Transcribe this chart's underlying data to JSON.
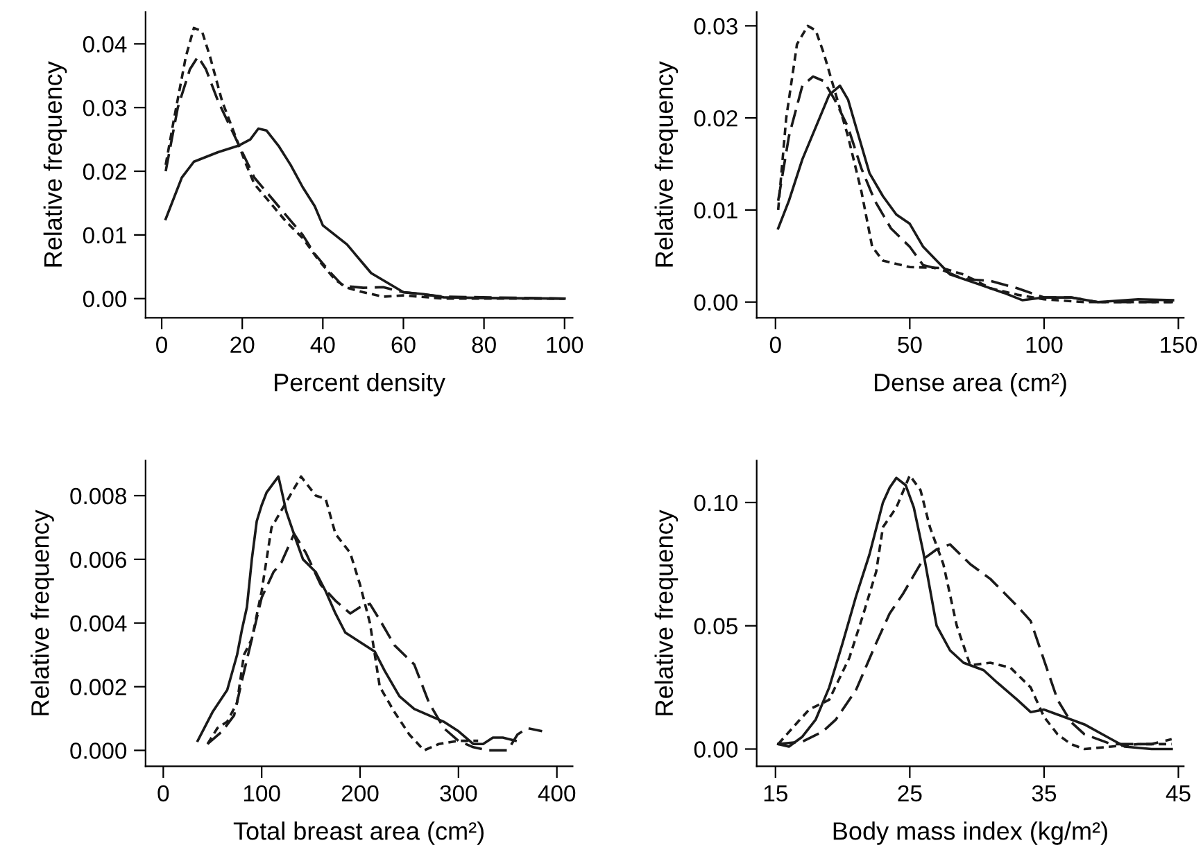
{
  "chart_data": [
    {
      "type": "line",
      "xlabel": "Percent density",
      "ylabel": "Relative frequency",
      "xlim": [
        -4,
        102
      ],
      "ylim": [
        -0.003,
        0.045
      ],
      "xticks": [
        0,
        20,
        40,
        60,
        80,
        100
      ],
      "yticks": [
        {
          "value": 0,
          "label": "0.00"
        },
        {
          "value": 0.01,
          "label": "0.01"
        },
        {
          "value": 0.02,
          "label": "0.02"
        },
        {
          "value": 0.03,
          "label": "0.03"
        },
        {
          "value": 0.04,
          "label": "0.04"
        }
      ],
      "series": [
        {
          "color": "#1a1a1a",
          "line_style": "solid",
          "x": [
            1,
            5,
            8,
            14,
            19,
            22,
            24,
            26,
            29,
            32,
            35,
            38,
            40,
            43,
            46,
            50,
            52,
            56,
            60,
            65,
            70,
            80,
            100
          ],
          "values": [
            0.0125,
            0.019,
            0.0215,
            0.023,
            0.024,
            0.025,
            0.0267,
            0.0264,
            0.024,
            0.021,
            0.0175,
            0.0145,
            0.0115,
            0.01,
            0.0085,
            0.0055,
            0.004,
            0.0025,
            0.001,
            0.0007,
            0.0002,
            0.0001,
            0.0
          ]
        },
        {
          "color": "#1a1a1a",
          "line_style": "dashed",
          "x": [
            1,
            4,
            7,
            9,
            11,
            14,
            17,
            20,
            23,
            27,
            31,
            35,
            38,
            42,
            45,
            50,
            55,
            60,
            70,
            100
          ],
          "values": [
            0.02,
            0.03,
            0.036,
            0.038,
            0.036,
            0.031,
            0.027,
            0.023,
            0.019,
            0.016,
            0.013,
            0.01,
            0.007,
            0.004,
            0.002,
            0.0017,
            0.0018,
            0.001,
            0.0003,
            0.0
          ]
        },
        {
          "color": "#1a1a1a",
          "line_style": "dotted",
          "x": [
            1,
            3,
            6,
            8,
            10,
            12,
            15,
            18,
            21,
            23,
            27,
            31,
            35,
            39,
            43,
            46,
            50,
            55,
            60,
            70,
            100
          ],
          "values": [
            0.021,
            0.028,
            0.038,
            0.0425,
            0.042,
            0.038,
            0.031,
            0.026,
            0.021,
            0.018,
            0.015,
            0.012,
            0.0095,
            0.006,
            0.003,
            0.0017,
            0.001,
            0.0003,
            0.0005,
            0.0,
            0.0
          ]
        }
      ]
    },
    {
      "type": "line",
      "xlabel": "Dense area (cm²)",
      "ylabel": "Relative frequency",
      "xlim": [
        -7,
        152
      ],
      "ylim": [
        -0.0017,
        0.0315
      ],
      "xticks": [
        0,
        50,
        100,
        150
      ],
      "yticks": [
        {
          "value": 0,
          "label": "0.00"
        },
        {
          "value": 0.01,
          "label": "0.01"
        },
        {
          "value": 0.02,
          "label": "0.02"
        },
        {
          "value": 0.03,
          "label": "0.03"
        }
      ],
      "series": [
        {
          "color": "#1a1a1a",
          "line_style": "solid",
          "x": [
            1,
            5,
            10,
            15,
            20,
            24,
            27,
            30,
            35,
            40,
            45,
            50,
            55,
            60,
            65,
            75,
            85,
            92,
            100,
            110,
            120,
            135,
            148
          ],
          "values": [
            0.008,
            0.011,
            0.0155,
            0.019,
            0.0225,
            0.0235,
            0.022,
            0.019,
            0.014,
            0.0115,
            0.0095,
            0.0085,
            0.006,
            0.0045,
            0.003,
            0.002,
            0.001,
            0.0002,
            0.0005,
            0.0005,
            0.0,
            0.0003,
            0.0002
          ]
        },
        {
          "color": "#1a1a1a",
          "line_style": "dashed",
          "x": [
            1,
            5,
            10,
            14,
            18,
            22,
            27,
            32,
            37,
            43,
            50,
            55,
            62,
            70,
            80,
            90,
            100,
            110,
            120,
            148
          ],
          "values": [
            0.011,
            0.018,
            0.0235,
            0.0245,
            0.024,
            0.022,
            0.019,
            0.0145,
            0.011,
            0.008,
            0.006,
            0.004,
            0.0035,
            0.0025,
            0.0023,
            0.0015,
            0.0005,
            0.0005,
            0.0,
            0.0
          ]
        },
        {
          "color": "#1a1a1a",
          "line_style": "dotted",
          "x": [
            1,
            4,
            8,
            12,
            15,
            18,
            22,
            27,
            32,
            36,
            40,
            50,
            62,
            70,
            80,
            90,
            100,
            115,
            130,
            148
          ],
          "values": [
            0.01,
            0.02,
            0.028,
            0.03,
            0.0295,
            0.027,
            0.023,
            0.018,
            0.012,
            0.006,
            0.0045,
            0.0038,
            0.0037,
            0.003,
            0.0015,
            0.0008,
            0.0003,
            0.0,
            0.0,
            0.0
          ]
        }
      ]
    },
    {
      "type": "line",
      "xlabel": "Total breast area (cm²)",
      "ylabel": "Relative frequency",
      "xlim": [
        -18,
        416
      ],
      "ylim": [
        -0.0005,
        0.0091
      ],
      "xticks": [
        0,
        100,
        200,
        300,
        400
      ],
      "yticks": [
        {
          "value": 0,
          "label": "0.000"
        },
        {
          "value": 0.002,
          "label": "0.002"
        },
        {
          "value": 0.004,
          "label": "0.004"
        },
        {
          "value": 0.006,
          "label": "0.006"
        },
        {
          "value": 0.008,
          "label": "0.008"
        }
      ],
      "series": [
        {
          "color": "#1a1a1a",
          "line_style": "solid",
          "x": [
            35,
            50,
            65,
            75,
            80,
            85,
            90,
            95,
            100,
            105,
            117,
            125,
            135,
            142,
            155,
            165,
            175,
            185,
            200,
            215,
            225,
            240,
            255,
            270,
            285,
            300,
            315,
            325,
            335,
            345,
            358
          ],
          "values": [
            0.0003,
            0.0012,
            0.0019,
            0.003,
            0.0038,
            0.0045,
            0.006,
            0.0072,
            0.0077,
            0.0081,
            0.0086,
            0.0075,
            0.0066,
            0.006,
            0.0056,
            0.005,
            0.0043,
            0.0037,
            0.0034,
            0.0031,
            0.0025,
            0.0017,
            0.0013,
            0.0011,
            0.0009,
            0.0006,
            0.0002,
            0.0002,
            0.0004,
            0.0004,
            0.0003
          ]
        },
        {
          "color": "#1a1a1a",
          "line_style": "dashed",
          "x": [
            45,
            60,
            72,
            80,
            90,
            100,
            112,
            120,
            133,
            145,
            160,
            175,
            190,
            200,
            210,
            220,
            235,
            255,
            270,
            285,
            300,
            315,
            330,
            350,
            360,
            370,
            385
          ],
          "values": [
            0.0002,
            0.0006,
            0.0011,
            0.0022,
            0.0035,
            0.0048,
            0.0056,
            0.0059,
            0.0068,
            0.0062,
            0.0052,
            0.0047,
            0.0043,
            0.0045,
            0.0046,
            0.0041,
            0.0033,
            0.0027,
            0.0015,
            0.0007,
            0.0003,
            0.0001,
            0.0,
            0.0,
            0.0005,
            0.0007,
            0.0006
          ]
        },
        {
          "color": "#1a1a1a",
          "line_style": "dotted",
          "x": [
            45,
            55,
            65,
            75,
            82,
            90,
            100,
            110,
            125,
            140,
            155,
            165,
            175,
            190,
            200,
            210,
            220,
            235,
            250,
            265,
            280,
            300,
            320
          ],
          "values": [
            0.0002,
            0.0007,
            0.0009,
            0.0015,
            0.003,
            0.0035,
            0.005,
            0.007,
            0.0078,
            0.0086,
            0.008,
            0.0079,
            0.0068,
            0.0062,
            0.0052,
            0.004,
            0.002,
            0.0012,
            0.0005,
            0.0,
            0.0002,
            0.0003,
            0.0003
          ]
        }
      ]
    },
    {
      "type": "line",
      "xlabel": "Body mass index (kg/m²)",
      "ylabel": "Relative frequency",
      "xlim": [
        13.6,
        45.4
      ],
      "ylim": [
        -0.007,
        0.117
      ],
      "xticks": [
        15,
        25,
        35,
        45
      ],
      "yticks": [
        {
          "value": 0,
          "label": "0.00"
        },
        {
          "value": 0.05,
          "label": "0.05"
        },
        {
          "value": 0.1,
          "label": "0.10"
        }
      ],
      "series": [
        {
          "color": "#1a1a1a",
          "line_style": "solid",
          "x": [
            15.2,
            16,
            17,
            18,
            19,
            20,
            21,
            22,
            23,
            23.5,
            24,
            24.7,
            25.3,
            26,
            26.5,
            27,
            28,
            29,
            30.5,
            31.5,
            33,
            34,
            35,
            36,
            38,
            40,
            41,
            43,
            44.5
          ],
          "values": [
            0.002,
            0.001,
            0.005,
            0.012,
            0.025,
            0.043,
            0.062,
            0.079,
            0.1,
            0.106,
            0.11,
            0.107,
            0.098,
            0.08,
            0.065,
            0.05,
            0.04,
            0.035,
            0.032,
            0.027,
            0.02,
            0.015,
            0.016,
            0.014,
            0.01,
            0.004,
            0.001,
            0.0,
            0.0
          ]
        },
        {
          "color": "#1a1a1a",
          "line_style": "dashed",
          "x": [
            15.2,
            17,
            18.5,
            19.5,
            21,
            22.5,
            23.5,
            24.5,
            26,
            27,
            28,
            29.5,
            31,
            33,
            34,
            35,
            36,
            37,
            38,
            40,
            43,
            44.5
          ],
          "values": [
            0.002,
            0.003,
            0.007,
            0.012,
            0.024,
            0.043,
            0.055,
            0.063,
            0.077,
            0.081,
            0.083,
            0.075,
            0.069,
            0.058,
            0.052,
            0.036,
            0.02,
            0.011,
            0.006,
            0.002,
            0.002,
            0.004
          ]
        },
        {
          "color": "#1a1a1a",
          "line_style": "dotted",
          "x": [
            15.2,
            16.5,
            17.5,
            19,
            20.5,
            21.5,
            22.5,
            23,
            24,
            25,
            25.8,
            26.5,
            27.5,
            28.5,
            29.5,
            31,
            32.5,
            34,
            35,
            36,
            37,
            38,
            40,
            42,
            44.5
          ],
          "values": [
            0.002,
            0.01,
            0.016,
            0.02,
            0.037,
            0.054,
            0.072,
            0.09,
            0.098,
            0.111,
            0.105,
            0.09,
            0.075,
            0.05,
            0.034,
            0.035,
            0.033,
            0.025,
            0.013,
            0.006,
            0.002,
            0.0,
            0.001,
            0.002,
            0.002
          ]
        }
      ]
    }
  ]
}
